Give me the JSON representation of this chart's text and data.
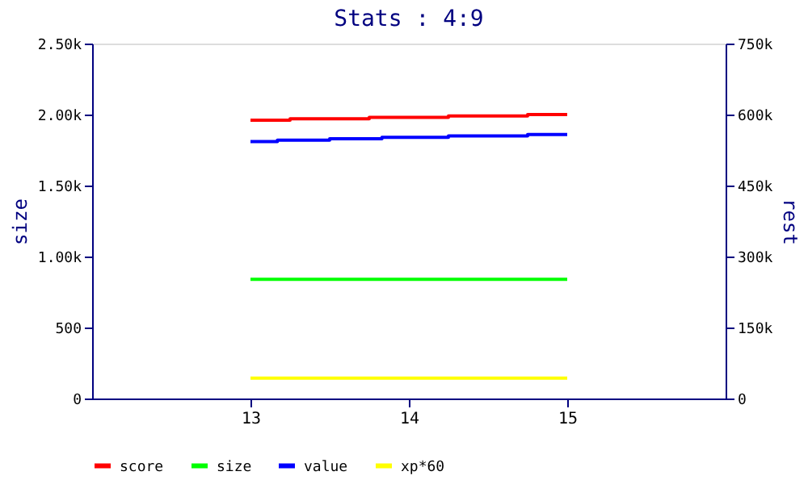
{
  "chart_data": {
    "type": "step",
    "title": "Stats : 4:9",
    "ylabel": "size",
    "y2label": "rest",
    "xlim": [
      12,
      16
    ],
    "xticks": [
      13,
      14,
      15
    ],
    "ylim": [
      0,
      2500
    ],
    "yticks": [
      0,
      500,
      {
        "value": 1000,
        "label": "1.00k"
      },
      {
        "value": 1500,
        "label": "1.50k"
      },
      {
        "value": 2000,
        "label": "2.00k"
      },
      {
        "value": 2500,
        "label": "2.50k"
      }
    ],
    "y2lim": [
      0,
      750000
    ],
    "y2ticks": [
      0,
      {
        "value": 150000,
        "label": "150k"
      },
      {
        "value": 300000,
        "label": "300k"
      },
      {
        "value": 450000,
        "label": "450k"
      },
      {
        "value": 600000,
        "label": "600k"
      },
      {
        "value": 750000,
        "label": "750k"
      }
    ],
    "grid": false,
    "legend": "bottom",
    "series": [
      {
        "name": "score",
        "color": "#ff0000",
        "axis": "y2",
        "x": [
          13,
          13.25,
          13.75,
          14.25,
          14.75,
          15
        ],
        "values": [
          588000,
          591000,
          594000,
          597000,
          600000,
          600000
        ]
      },
      {
        "name": "size",
        "color": "#00ff00",
        "x": [
          13,
          15
        ],
        "values": [
          840,
          840
        ]
      },
      {
        "name": "value",
        "color": "#0000ff",
        "axis": "y2",
        "x": [
          13,
          13.17,
          13.5,
          13.83,
          14.25,
          14.75,
          15
        ],
        "values": [
          543000,
          546000,
          549000,
          552000,
          555000,
          558000,
          558000
        ]
      },
      {
        "name": "xp*60",
        "color": "#ffff00",
        "axis": "y2",
        "x": [
          13,
          15
        ],
        "values": [
          43000,
          43000
        ]
      }
    ]
  }
}
